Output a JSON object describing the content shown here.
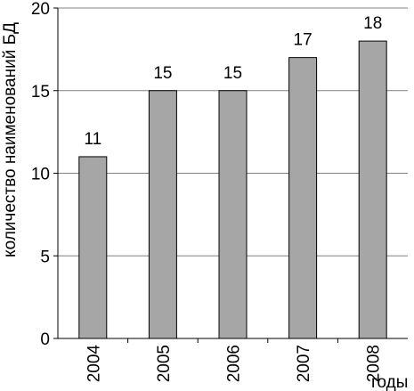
{
  "chart_data": {
    "type": "bar",
    "categories": [
      "2004",
      "2005",
      "2006",
      "2007",
      "2008"
    ],
    "values": [
      11,
      15,
      15,
      17,
      18
    ],
    "title": "",
    "xlabel": "годы",
    "ylabel": "количество наименований БД",
    "ylim": [
      0,
      20
    ],
    "yticks": [
      0,
      5,
      10,
      15,
      20
    ],
    "grid": true,
    "bar_color": "#a6a6a6",
    "bar_edge_color": "#000000",
    "grid_color": "#808080"
  }
}
